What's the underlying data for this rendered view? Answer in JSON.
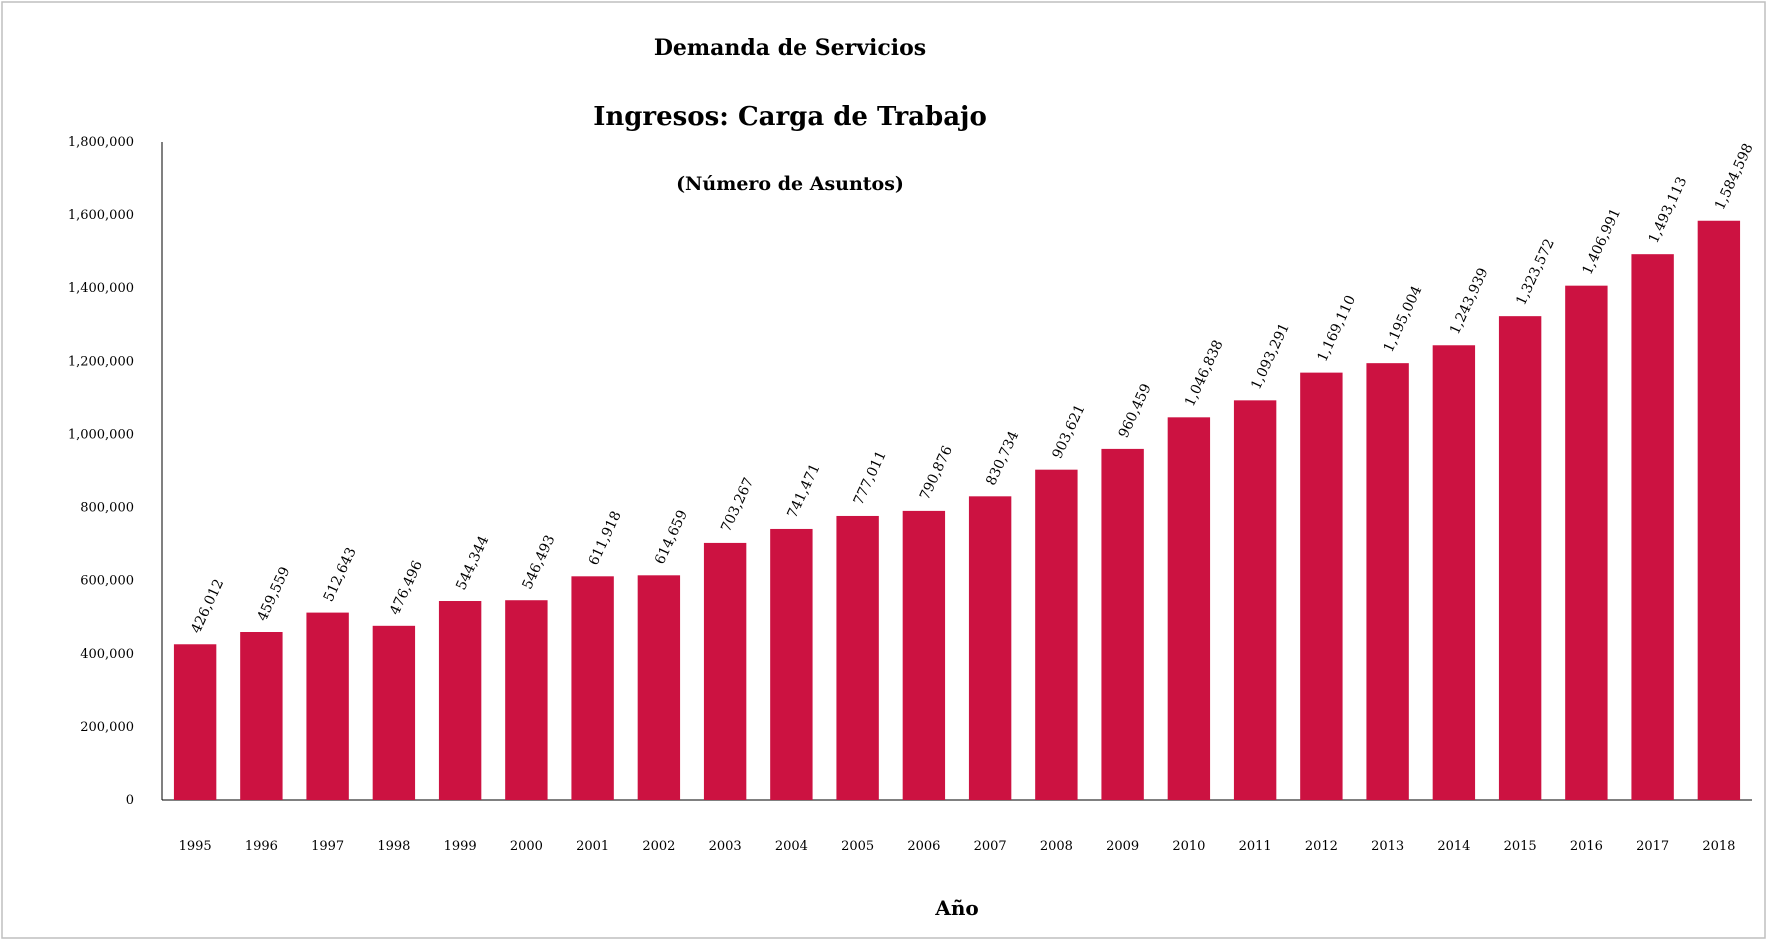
{
  "chart_data": {
    "type": "bar",
    "title": "Demanda de Servicios",
    "subtitle": "Ingresos: Carga de Trabajo",
    "subtitle2": "(Número de Asuntos)",
    "xlabel": "Año",
    "ylabel": "",
    "ylim": [
      0,
      1800000
    ],
    "yticks": [
      "0",
      "200,000",
      "400,000",
      "600,000",
      "800,000",
      "1,000,000",
      "1,200,000",
      "1,400,000",
      "1,600,000",
      "1,800,000"
    ],
    "grid": false,
    "bar_color": "#cc1241",
    "categories": [
      "1995",
      "1996",
      "1997",
      "1998",
      "1999",
      "2000",
      "2001",
      "2002",
      "2003",
      "2004",
      "2005",
      "2006",
      "2007",
      "2008",
      "2009",
      "2010",
      "2011",
      "2012",
      "2013",
      "2014",
      "2015",
      "2016",
      "2017",
      "2018"
    ],
    "values": [
      426012,
      459559,
      512643,
      476496,
      544344,
      546493,
      611918,
      614659,
      703267,
      741471,
      777011,
      790876,
      830734,
      903621,
      960459,
      1046838,
      1093291,
      1169110,
      1195004,
      1243939,
      1323572,
      1406991,
      1493113,
      1584598
    ],
    "value_labels": [
      "426,012",
      "459,559",
      "512,643",
      "476,496",
      "544,344",
      "546,493",
      "611,918",
      "614,659",
      "703,267",
      "741,471",
      "777,011",
      "790,876",
      "830,734",
      "903,621",
      "960,459",
      "1,046,838",
      "1,093,291",
      "1,169,110",
      "1,195,004",
      "1,243,939",
      "1,323,572",
      "1,406,991",
      "1,493,113",
      "1,584,598"
    ]
  }
}
